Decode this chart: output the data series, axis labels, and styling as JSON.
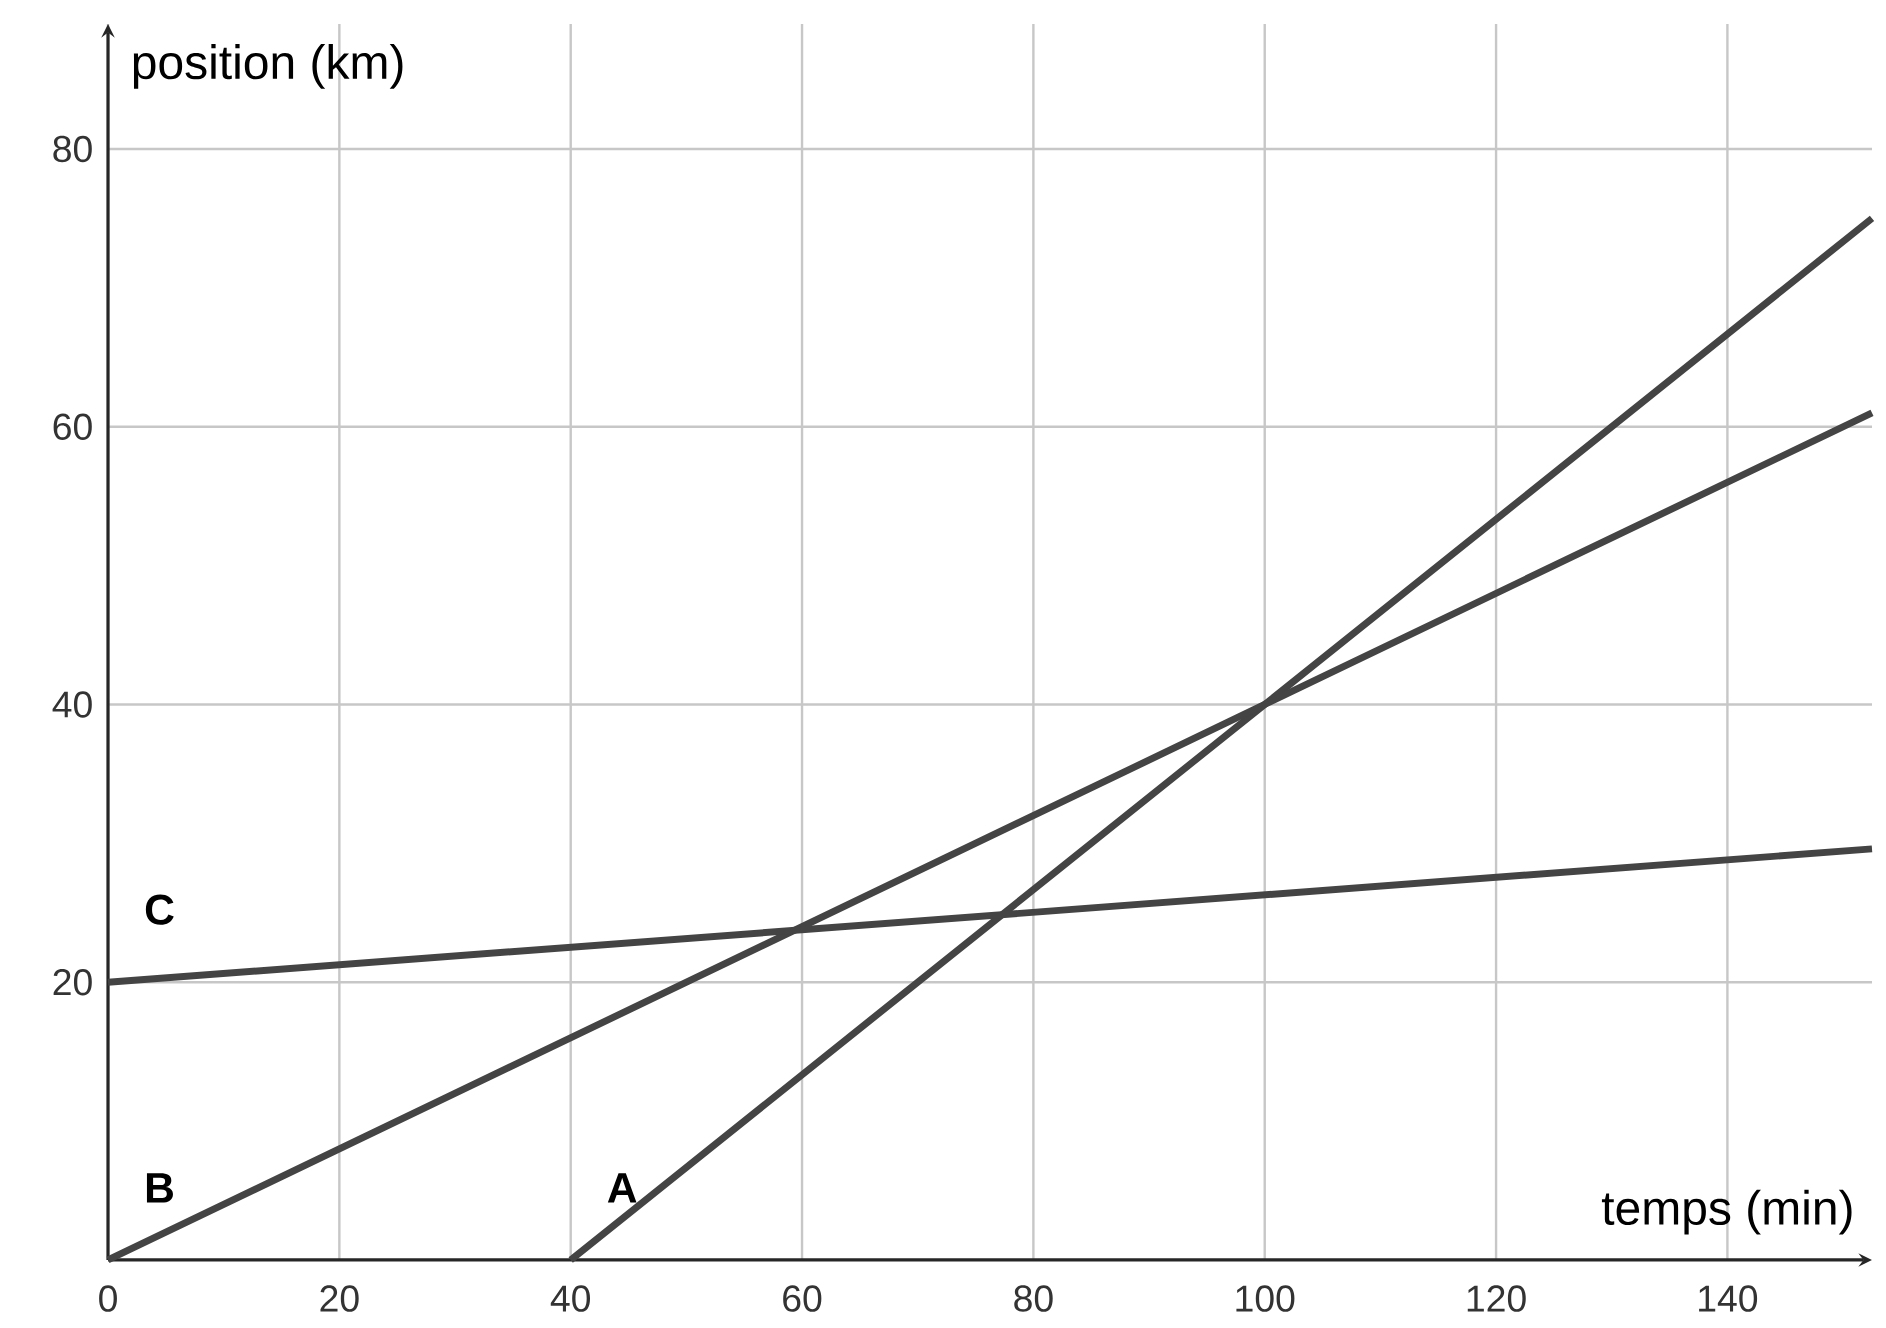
{
  "chart_data": {
    "type": "line",
    "xlabel": "temps (min)",
    "ylabel": "position (km)",
    "xlim": [
      0,
      152.5
    ],
    "ylim": [
      0,
      89
    ],
    "xticks": [
      0,
      20,
      40,
      60,
      80,
      100,
      120,
      140
    ],
    "yticks": [
      20,
      40,
      60,
      80
    ],
    "grid": true,
    "marker": "none",
    "line_style": "solid",
    "series": [
      {
        "name": "A",
        "color": "#444444",
        "x": [
          40,
          100,
          152.5
        ],
        "values": [
          0,
          40,
          75
        ]
      },
      {
        "name": "B",
        "color": "#444444",
        "x": [
          0,
          100,
          152.5
        ],
        "values": [
          0,
          40,
          61
        ]
      },
      {
        "name": "C",
        "color": "#444444",
        "x": [
          0,
          152.5
        ],
        "values": [
          20,
          29.6
        ]
      }
    ]
  }
}
